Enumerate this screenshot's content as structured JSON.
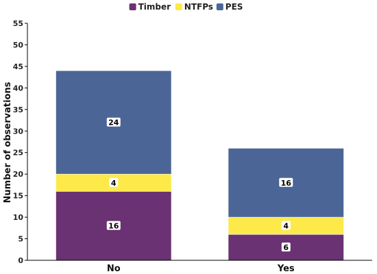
{
  "chart_data": {
    "type": "bar",
    "stacked": true,
    "categories": [
      "No",
      "Yes"
    ],
    "series": [
      {
        "name": "Timber",
        "values": [
          16,
          6
        ],
        "color": "#6a3173"
      },
      {
        "name": "NTFPs",
        "values": [
          4,
          4
        ],
        "color": "#fde94a"
      },
      {
        "name": "PES",
        "values": [
          24,
          16
        ],
        "color": "#4b6696"
      }
    ],
    "title": "",
    "xlabel": "",
    "ylabel": "Number of observations",
    "ylim": [
      0,
      55
    ],
    "yticks": [
      0,
      5,
      10,
      15,
      20,
      25,
      30,
      35,
      40,
      45,
      50,
      55
    ],
    "grid": false,
    "legend_position": "top-center"
  }
}
